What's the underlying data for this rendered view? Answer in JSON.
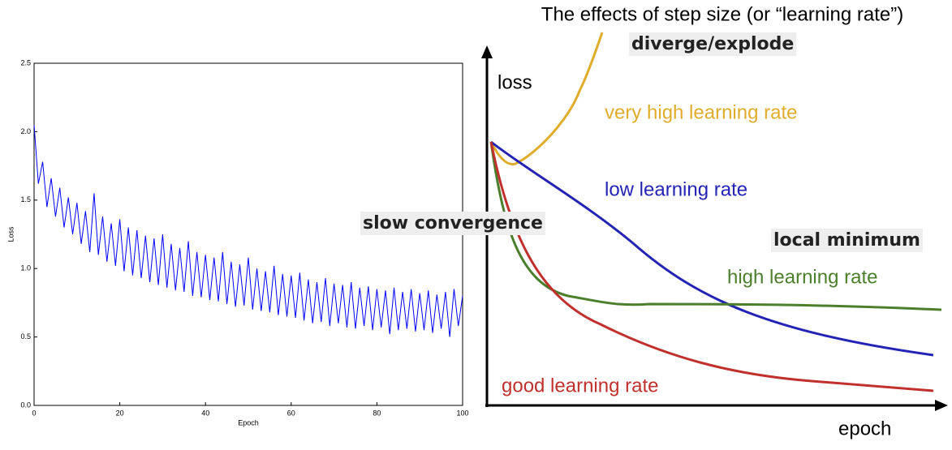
{
  "chart_data": {
    "type": "line",
    "x_label": "Epoch",
    "y_label": "Loss",
    "x": [
      0,
      1,
      2,
      3,
      4,
      5,
      6,
      7,
      8,
      9,
      10,
      11,
      12,
      13,
      14,
      15,
      16,
      17,
      18,
      19,
      20,
      21,
      22,
      23,
      24,
      25,
      26,
      27,
      28,
      29,
      30,
      31,
      32,
      33,
      34,
      35,
      36,
      37,
      38,
      39,
      40,
      41,
      42,
      43,
      44,
      45,
      46,
      47,
      48,
      49,
      50,
      51,
      52,
      53,
      54,
      55,
      56,
      57,
      58,
      59,
      60,
      61,
      62,
      63,
      64,
      65,
      66,
      67,
      68,
      69,
      70,
      71,
      72,
      73,
      74,
      75,
      76,
      77,
      78,
      79,
      80,
      81,
      82,
      83,
      84,
      85,
      86,
      87,
      88,
      89,
      90,
      91,
      92,
      93,
      94,
      95,
      96,
      97,
      98,
      99,
      100
    ],
    "series": [
      {
        "color": "#0000ff",
        "values": [
          2.05,
          1.62,
          1.78,
          1.45,
          1.66,
          1.38,
          1.59,
          1.3,
          1.52,
          1.25,
          1.48,
          1.18,
          1.42,
          1.12,
          1.55,
          1.1,
          1.38,
          1.05,
          1.33,
          1.02,
          1.36,
          0.98,
          1.3,
          0.95,
          1.28,
          0.93,
          1.24,
          0.9,
          1.22,
          0.88,
          1.25,
          0.86,
          1.18,
          0.84,
          1.15,
          0.83,
          1.2,
          0.8,
          1.12,
          0.79,
          1.1,
          0.77,
          1.08,
          0.76,
          1.12,
          0.74,
          1.05,
          0.72,
          1.03,
          0.73,
          1.08,
          0.7,
          1.0,
          0.69,
          0.98,
          0.68,
          1.02,
          0.66,
          0.96,
          0.65,
          0.95,
          0.64,
          0.97,
          0.62,
          0.92,
          0.6,
          0.9,
          0.61,
          0.93,
          0.58,
          0.89,
          0.6,
          0.88,
          0.57,
          0.9,
          0.56,
          0.86,
          0.58,
          0.87,
          0.55,
          0.85,
          0.57,
          0.84,
          0.52,
          0.86,
          0.55,
          0.83,
          0.56,
          0.85,
          0.54,
          0.82,
          0.55,
          0.84,
          0.53,
          0.81,
          0.56,
          0.83,
          0.5,
          0.85,
          0.58,
          0.8
        ]
      }
    ],
    "xlim": [
      0,
      100
    ],
    "xticks": [
      0,
      20,
      40,
      60,
      80,
      100
    ],
    "ylim": [
      0,
      2.5
    ],
    "yticks": [
      {
        "value": 0,
        "label": "0.0"
      },
      0.5,
      {
        "value": 1,
        "label": "1.0"
      },
      1.5,
      {
        "value": 2,
        "label": "2.0"
      },
      2.5
    ]
  },
  "diagram": {
    "title": "The effects of step size (or “learning rate”)",
    "y_label": "loss",
    "x_label": "epoch",
    "annotations": [
      "diverge/explode",
      "slow convergence",
      "local minimum"
    ],
    "curves": [
      "very high learning rate",
      "low learning rate",
      "high learning rate",
      "good learning rate"
    ]
  }
}
